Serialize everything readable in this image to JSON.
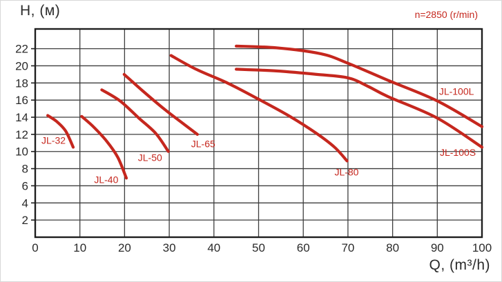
{
  "titles": {
    "y_axis_title": "H, (м)",
    "x_axis_title": "Q, (m³/h)",
    "speed_annotation": "n=2850 (r/min)"
  },
  "colors": {
    "curve": "#c5271e",
    "curve_label": "#c5271e",
    "grid": "#3d3d3d",
    "border": "#1e1e1e",
    "tick_text": "#2b2b2b",
    "background": "#ffffff",
    "annotation": "#c5271e"
  },
  "chart_data": {
    "type": "line",
    "xlabel": "Q, (m³/h)",
    "ylabel": "H, (м)",
    "annotation": "n=2850 (r/min)",
    "xlim": [
      0,
      100
    ],
    "ylim": [
      0,
      24.3
    ],
    "x_ticks": [
      0,
      10,
      20,
      30,
      40,
      50,
      60,
      70,
      80,
      90,
      100
    ],
    "y_ticks": [
      2,
      4,
      6,
      8,
      10,
      12,
      14,
      16,
      18,
      20,
      22
    ],
    "grid": true,
    "legend_position": "inline-labels",
    "series": [
      {
        "name": "JL-32",
        "points": [
          [
            2.8,
            14.2
          ],
          [
            4.8,
            13.5
          ],
          [
            6.8,
            12.4
          ],
          [
            8.5,
            10.5
          ]
        ],
        "label_pos": [
          4.1,
          11.3
        ]
      },
      {
        "name": "JL-40",
        "points": [
          [
            10.4,
            14.1
          ],
          [
            13,
            12.9
          ],
          [
            16,
            11.2
          ],
          [
            18.5,
            9.3
          ],
          [
            20.4,
            6.9
          ]
        ],
        "label_pos": [
          15.9,
          6.7
        ]
      },
      {
        "name": "JL-50",
        "points": [
          [
            14.9,
            17.2
          ],
          [
            19,
            15.9
          ],
          [
            23.2,
            13.9
          ],
          [
            27,
            12.1
          ],
          [
            29.8,
            10.0
          ]
        ],
        "label_pos": [
          25.7,
          9.3
        ]
      },
      {
        "name": "JL-65",
        "points": [
          [
            19.9,
            19.0
          ],
          [
            24,
            17.1
          ],
          [
            29,
            14.9
          ],
          [
            33,
            13.3
          ],
          [
            36.3,
            12.0
          ]
        ],
        "label_pos": [
          37.6,
          10.9
        ]
      },
      {
        "name": "JL-80",
        "points": [
          [
            30.4,
            21.2
          ],
          [
            36,
            19.6
          ],
          [
            43,
            18.0
          ],
          [
            50,
            16.1
          ],
          [
            57,
            14.1
          ],
          [
            63,
            12.1
          ],
          [
            67,
            10.5
          ],
          [
            69.8,
            8.9
          ]
        ],
        "label_pos": [
          69.7,
          7.6
        ]
      },
      {
        "name": "JL-100L",
        "points": [
          [
            45,
            22.3
          ],
          [
            54,
            22.1
          ],
          [
            64,
            21.4
          ],
          [
            70,
            20.3
          ],
          [
            79,
            18.3
          ],
          [
            90,
            15.9
          ],
          [
            100,
            12.9
          ]
        ],
        "label_pos": [
          94.3,
          17.0
        ]
      },
      {
        "name": "JL-100S",
        "points": [
          [
            45,
            19.6
          ],
          [
            54,
            19.4
          ],
          [
            63,
            19.0
          ],
          [
            70,
            18.6
          ],
          [
            74.5,
            17.6
          ],
          [
            79,
            16.4
          ],
          [
            90,
            13.9
          ],
          [
            100,
            10.5
          ]
        ],
        "label_pos": [
          94.6,
          9.9
        ]
      }
    ]
  }
}
